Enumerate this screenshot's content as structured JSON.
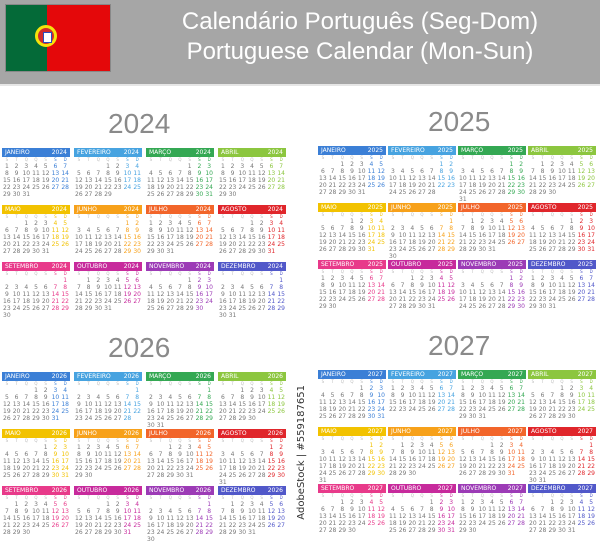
{
  "header": {
    "title_pt": "Calendário Português (Seg-Dom)",
    "title_en": "Portuguese Calendar (Mon-Sun)",
    "flag_colors": {
      "green": "#046a38",
      "red": "#e4080a",
      "yellow": "#f5e30b"
    }
  },
  "weekdays": [
    "S",
    "T",
    "Q",
    "Q",
    "S",
    "S",
    "D"
  ],
  "months": [
    {
      "name": "JANEIRO",
      "color": "#3b7fd6"
    },
    {
      "name": "FEVEREIRO",
      "color": "#47a3e0"
    },
    {
      "name": "MARÇO",
      "color": "#34a853"
    },
    {
      "name": "ABRIL",
      "color": "#8cc63f"
    },
    {
      "name": "MAIO",
      "color": "#f2c200"
    },
    {
      "name": "JUNHO",
      "color": "#f7a11a"
    },
    {
      "name": "JULHO",
      "color": "#f2652a"
    },
    {
      "name": "AGOSTO",
      "color": "#e0262b"
    },
    {
      "name": "SETEMBRO",
      "color": "#e83a8a"
    },
    {
      "name": "OUTUBRO",
      "color": "#c72a9c"
    },
    {
      "name": "NOVEMBRO",
      "color": "#9c3bb6"
    },
    {
      "name": "DEZEMBRO",
      "color": "#5158c9"
    }
  ],
  "years": [
    "2024",
    "2025",
    "2026",
    "2027"
  ],
  "watermark": "AdobeStock | #559187651"
}
